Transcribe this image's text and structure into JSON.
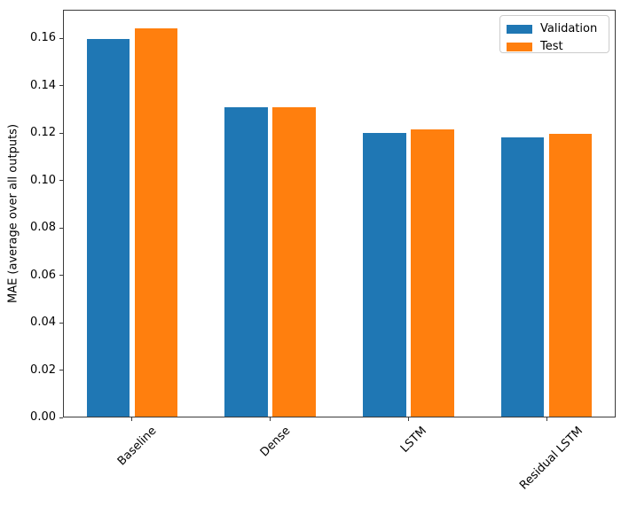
{
  "chart_data": {
    "type": "bar",
    "title": "",
    "xlabel": "",
    "ylabel": "MAE (average over all outputs)",
    "categories": [
      "Baseline",
      "Dense",
      "LSTM",
      "Residual LSTM"
    ],
    "series": [
      {
        "name": "Validation",
        "color": "#1f77b4",
        "values": [
          0.1595,
          0.131,
          0.12,
          0.118
        ]
      },
      {
        "name": "Test",
        "color": "#ff7f0e",
        "values": [
          0.164,
          0.131,
          0.1215,
          0.1195
        ]
      }
    ],
    "ylim": [
      0,
      0.172
    ],
    "yticks": [
      0,
      0.02,
      0.04,
      0.06,
      0.08,
      0.1,
      0.12,
      0.14,
      0.16
    ],
    "xtick_rotation": 45,
    "grid": false,
    "legend": {
      "position": "upper right",
      "entries": [
        "Validation",
        "Test"
      ]
    }
  },
  "colors": {
    "validation_bar": "#1f77b4",
    "test_bar": "#ff7f0e",
    "spine": "#3b3b3b",
    "text": "#000000",
    "legend_border": "#cccccc"
  }
}
